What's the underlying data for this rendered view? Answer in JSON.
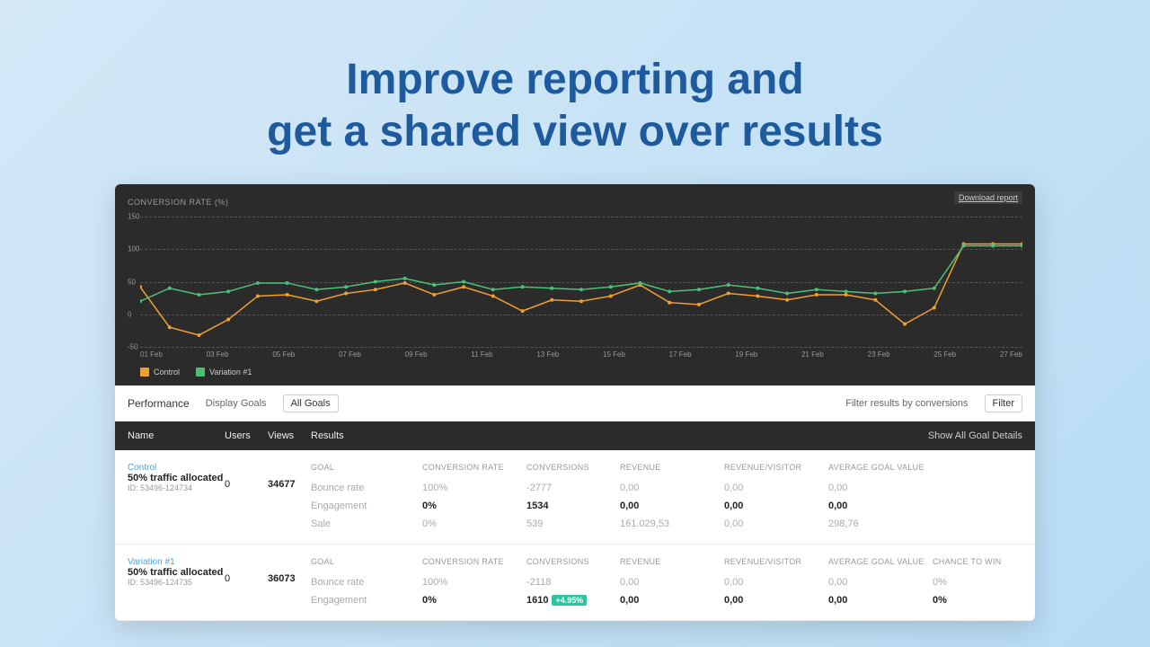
{
  "headline": "Improve reporting and\nget a shared view over results",
  "chart": {
    "title": "CONVERSION RATE (%)",
    "download_label": "Download report",
    "type": "line",
    "ylim": [
      -50,
      150
    ],
    "yticks": [
      -50,
      0,
      50,
      100,
      150
    ],
    "grid_color": "#555555",
    "background_color": "#2b2b2b",
    "x_labels": [
      "01 Feb",
      "03 Feb",
      "05 Feb",
      "07 Feb",
      "09 Feb",
      "11 Feb",
      "13 Feb",
      "15 Feb",
      "17 Feb",
      "19 Feb",
      "21 Feb",
      "23 Feb",
      "25 Feb",
      "27 Feb"
    ],
    "series": [
      {
        "name": "Control",
        "color": "#f0a030",
        "values": [
          42,
          -20,
          -32,
          -8,
          28,
          30,
          20,
          32,
          38,
          48,
          30,
          42,
          28,
          5,
          22,
          20,
          28,
          45,
          18,
          15,
          32,
          28,
          22,
          30,
          30,
          22,
          -15,
          10,
          108,
          108,
          108
        ]
      },
      {
        "name": "Variation #1",
        "color": "#4cc078",
        "values": [
          20,
          40,
          30,
          35,
          48,
          48,
          38,
          42,
          50,
          55,
          45,
          50,
          38,
          42,
          40,
          38,
          42,
          48,
          35,
          38,
          45,
          40,
          32,
          38,
          35,
          32,
          35,
          40,
          105,
          105,
          105
        ]
      }
    ],
    "legend": [
      {
        "label": "Control",
        "color": "#f0a030"
      },
      {
        "label": "Variation #1",
        "color": "#4cc078"
      }
    ]
  },
  "perf_bar": {
    "title": "Performance",
    "display_goals": "Display Goals",
    "all_goals": "All Goals",
    "filter_text": "Filter results by conversions",
    "filter_btn": "Filter"
  },
  "table_header": {
    "name": "Name",
    "users": "Users",
    "views": "Views",
    "results": "Results",
    "show_all": "Show All Goal Details"
  },
  "goal_headers": [
    "GOAL",
    "CONVERSION RATE",
    "CONVERSIONS",
    "REVENUE",
    "REVENUE/VISITOR",
    "AVERAGE GOAL VALUE",
    "CHANCE TO WIN"
  ],
  "rows": [
    {
      "name": "Control",
      "name_color": "#4da6d9",
      "traffic": "50% traffic allocated",
      "id": "ID: 53496-124734",
      "users": "0",
      "views": "34677",
      "goals": [
        {
          "label": "Bounce rate",
          "rate": "100%",
          "conv": "-2777",
          "rev": "0,00",
          "rv": "0,00",
          "agv": "0,00",
          "ctw": ""
        },
        {
          "label": "Engagement",
          "rate": "0%",
          "conv": "1534",
          "rev": "0,00",
          "rv": "0,00",
          "agv": "0,00",
          "ctw": "",
          "strong": true
        },
        {
          "label": "Sale",
          "rate": "0%",
          "conv": "539",
          "rev": "161.029,53",
          "rv": "0,00",
          "agv": "298,76",
          "ctw": ""
        }
      ]
    },
    {
      "name": "Variation #1",
      "name_color": "#4da6d9",
      "traffic": "50% traffic allocated",
      "id": "ID: 53496-124735",
      "users": "0",
      "views": "36073",
      "goals": [
        {
          "label": "Bounce rate",
          "rate": "100%",
          "conv": "-2118",
          "rev": "0,00",
          "rv": "0,00",
          "agv": "0,00",
          "ctw": "0%"
        },
        {
          "label": "Engagement",
          "rate": "0%",
          "conv": "1610",
          "conv_badge": "+4.95%",
          "rev": "0,00",
          "rv": "0,00",
          "agv": "0,00",
          "ctw": "0%",
          "strong": true
        }
      ]
    }
  ]
}
